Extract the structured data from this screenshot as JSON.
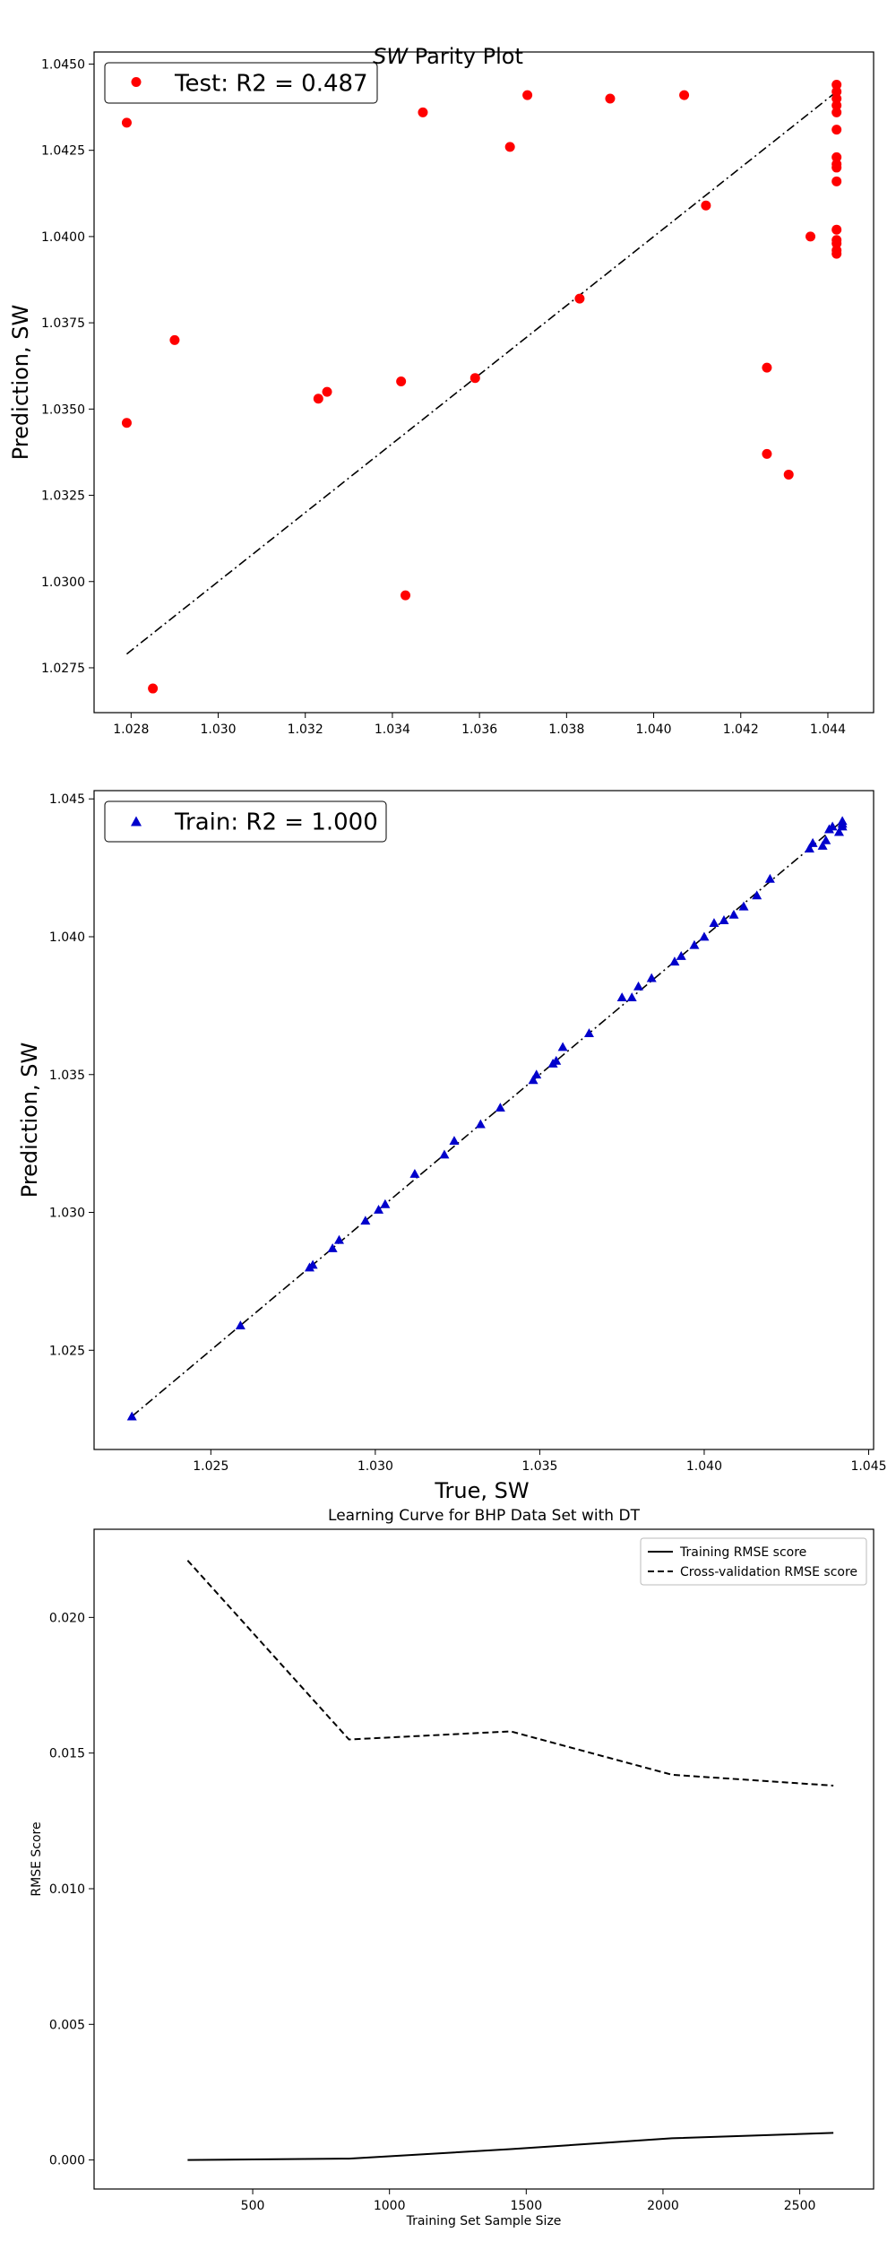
{
  "figure": {
    "suptitle_italic": "SW",
    "suptitle_rest": " Parity Plot"
  },
  "chart_data": [
    {
      "type": "scatter",
      "xlabel": "",
      "ylabel": "Prediction, SW",
      "xlim": [
        1.02715,
        1.04505
      ],
      "ylim": [
        1.0262,
        1.04535
      ],
      "xticks": [
        1.028,
        1.03,
        1.032,
        1.034,
        1.036,
        1.038,
        1.04,
        1.042,
        1.044
      ],
      "xtick_labels": [
        "1.028",
        "1.030",
        "1.032",
        "1.034",
        "1.036",
        "1.038",
        "1.040",
        "1.042",
        "1.044"
      ],
      "yticks": [
        1.0275,
        1.03,
        1.0325,
        1.035,
        1.0375,
        1.04,
        1.0425,
        1.045
      ],
      "ytick_labels": [
        "1.0275",
        "1.0300",
        "1.0325",
        "1.0350",
        "1.0375",
        "1.0400",
        "1.0425",
        "1.0450"
      ],
      "legend_position": "top-left",
      "reference_line": {
        "x": [
          1.0279,
          1.0442
        ],
        "y": [
          1.0279,
          1.0442
        ]
      },
      "series": [
        {
          "name": "Test: R2 =  0.487",
          "color": "#ff0000",
          "marker": "circle",
          "x": [
            1.0279,
            1.0279,
            1.0285,
            1.029,
            1.0323,
            1.0325,
            1.0342,
            1.0343,
            1.0347,
            1.0359,
            1.0367,
            1.0371,
            1.0383,
            1.039,
            1.0407,
            1.0412,
            1.0426,
            1.0426,
            1.0431,
            1.0436,
            1.0442,
            1.0442,
            1.0442,
            1.0442,
            1.0442,
            1.0442,
            1.0442,
            1.0442,
            1.0442,
            1.0442,
            1.0442,
            1.0442,
            1.0442,
            1.0442,
            1.0442
          ],
          "y": [
            1.0433,
            1.0346,
            1.0269,
            1.037,
            1.0353,
            1.0355,
            1.0358,
            1.0296,
            1.0436,
            1.0359,
            1.0426,
            1.0441,
            1.0382,
            1.044,
            1.0441,
            1.0409,
            1.0362,
            1.0337,
            1.0331,
            1.04,
            1.0444,
            1.0442,
            1.044,
            1.0438,
            1.0436,
            1.0431,
            1.0423,
            1.0421,
            1.042,
            1.0416,
            1.0402,
            1.0399,
            1.0398,
            1.0396,
            1.0395
          ]
        }
      ]
    },
    {
      "type": "scatter",
      "xlabel": "True, SW",
      "ylabel": "Prediction, SW",
      "xlim": [
        1.02145,
        1.04515
      ],
      "ylim": [
        1.0214,
        1.0453
      ],
      "xticks": [
        1.025,
        1.03,
        1.035,
        1.04,
        1.045
      ],
      "xtick_labels": [
        "1.025",
        "1.030",
        "1.035",
        "1.040",
        "1.045"
      ],
      "yticks": [
        1.025,
        1.03,
        1.035,
        1.04,
        1.045
      ],
      "ytick_labels": [
        "1.025",
        "1.030",
        "1.035",
        "1.040",
        "1.045"
      ],
      "legend_position": "top-left",
      "reference_line": {
        "x": [
          1.0226,
          1.0442
        ],
        "y": [
          1.0226,
          1.0442
        ]
      },
      "series": [
        {
          "name": "Train: R2 =  1.000",
          "color": "#0000cc",
          "marker": "triangle",
          "x": [
            1.0226,
            1.0259,
            1.028,
            1.0281,
            1.0287,
            1.0289,
            1.0297,
            1.0301,
            1.0303,
            1.0312,
            1.0321,
            1.0324,
            1.0332,
            1.0338,
            1.0348,
            1.0349,
            1.0354,
            1.0355,
            1.0357,
            1.0365,
            1.0375,
            1.0378,
            1.038,
            1.0384,
            1.0391,
            1.0393,
            1.0397,
            1.04,
            1.0403,
            1.0406,
            1.0409,
            1.0412,
            1.0416,
            1.042,
            1.0432,
            1.0433,
            1.0436,
            1.0437,
            1.0438,
            1.0439,
            1.0441,
            1.0442,
            1.0442,
            1.0442
          ],
          "y": [
            1.0226,
            1.0259,
            1.028,
            1.0281,
            1.0287,
            1.029,
            1.0297,
            1.0301,
            1.0303,
            1.0314,
            1.0321,
            1.0326,
            1.0332,
            1.0338,
            1.0348,
            1.035,
            1.0354,
            1.0355,
            1.036,
            1.0365,
            1.0378,
            1.0378,
            1.0382,
            1.0385,
            1.0391,
            1.0393,
            1.0397,
            1.04,
            1.0405,
            1.0406,
            1.0408,
            1.0411,
            1.0415,
            1.0421,
            1.0432,
            1.0434,
            1.0433,
            1.0435,
            1.0439,
            1.044,
            1.0438,
            1.0441,
            1.0442,
            1.044
          ]
        }
      ]
    },
    {
      "type": "line",
      "title": "Learning Curve for BHP Data Set with DT",
      "xlabel": "Training Set Sample Size",
      "ylabel": "RMSE Score",
      "xlim": [
        -80,
        2770
      ],
      "ylim": [
        -0.00107,
        0.02325
      ],
      "xticks": [
        500,
        1000,
        1500,
        2000,
        2500
      ],
      "xtick_labels": [
        "500",
        "1000",
        "1500",
        "2000",
        "2500"
      ],
      "yticks": [
        0.0,
        0.005,
        0.01,
        0.015,
        0.02
      ],
      "ytick_labels": [
        "0.000",
        "0.005",
        "0.010",
        "0.015",
        "0.020"
      ],
      "legend_position": "top-right",
      "x": [
        262,
        852,
        1443,
        2033,
        2623
      ],
      "series": [
        {
          "name": "Training RMSE score",
          "style": "solid",
          "color": "#000000",
          "values": [
            0.0,
            5e-05,
            0.0004,
            0.0008,
            0.001
          ]
        },
        {
          "name": "Cross-validation RMSE score",
          "style": "dashed",
          "color": "#000000",
          "values": [
            0.0221,
            0.0155,
            0.0158,
            0.0142,
            0.0138
          ]
        }
      ]
    }
  ]
}
